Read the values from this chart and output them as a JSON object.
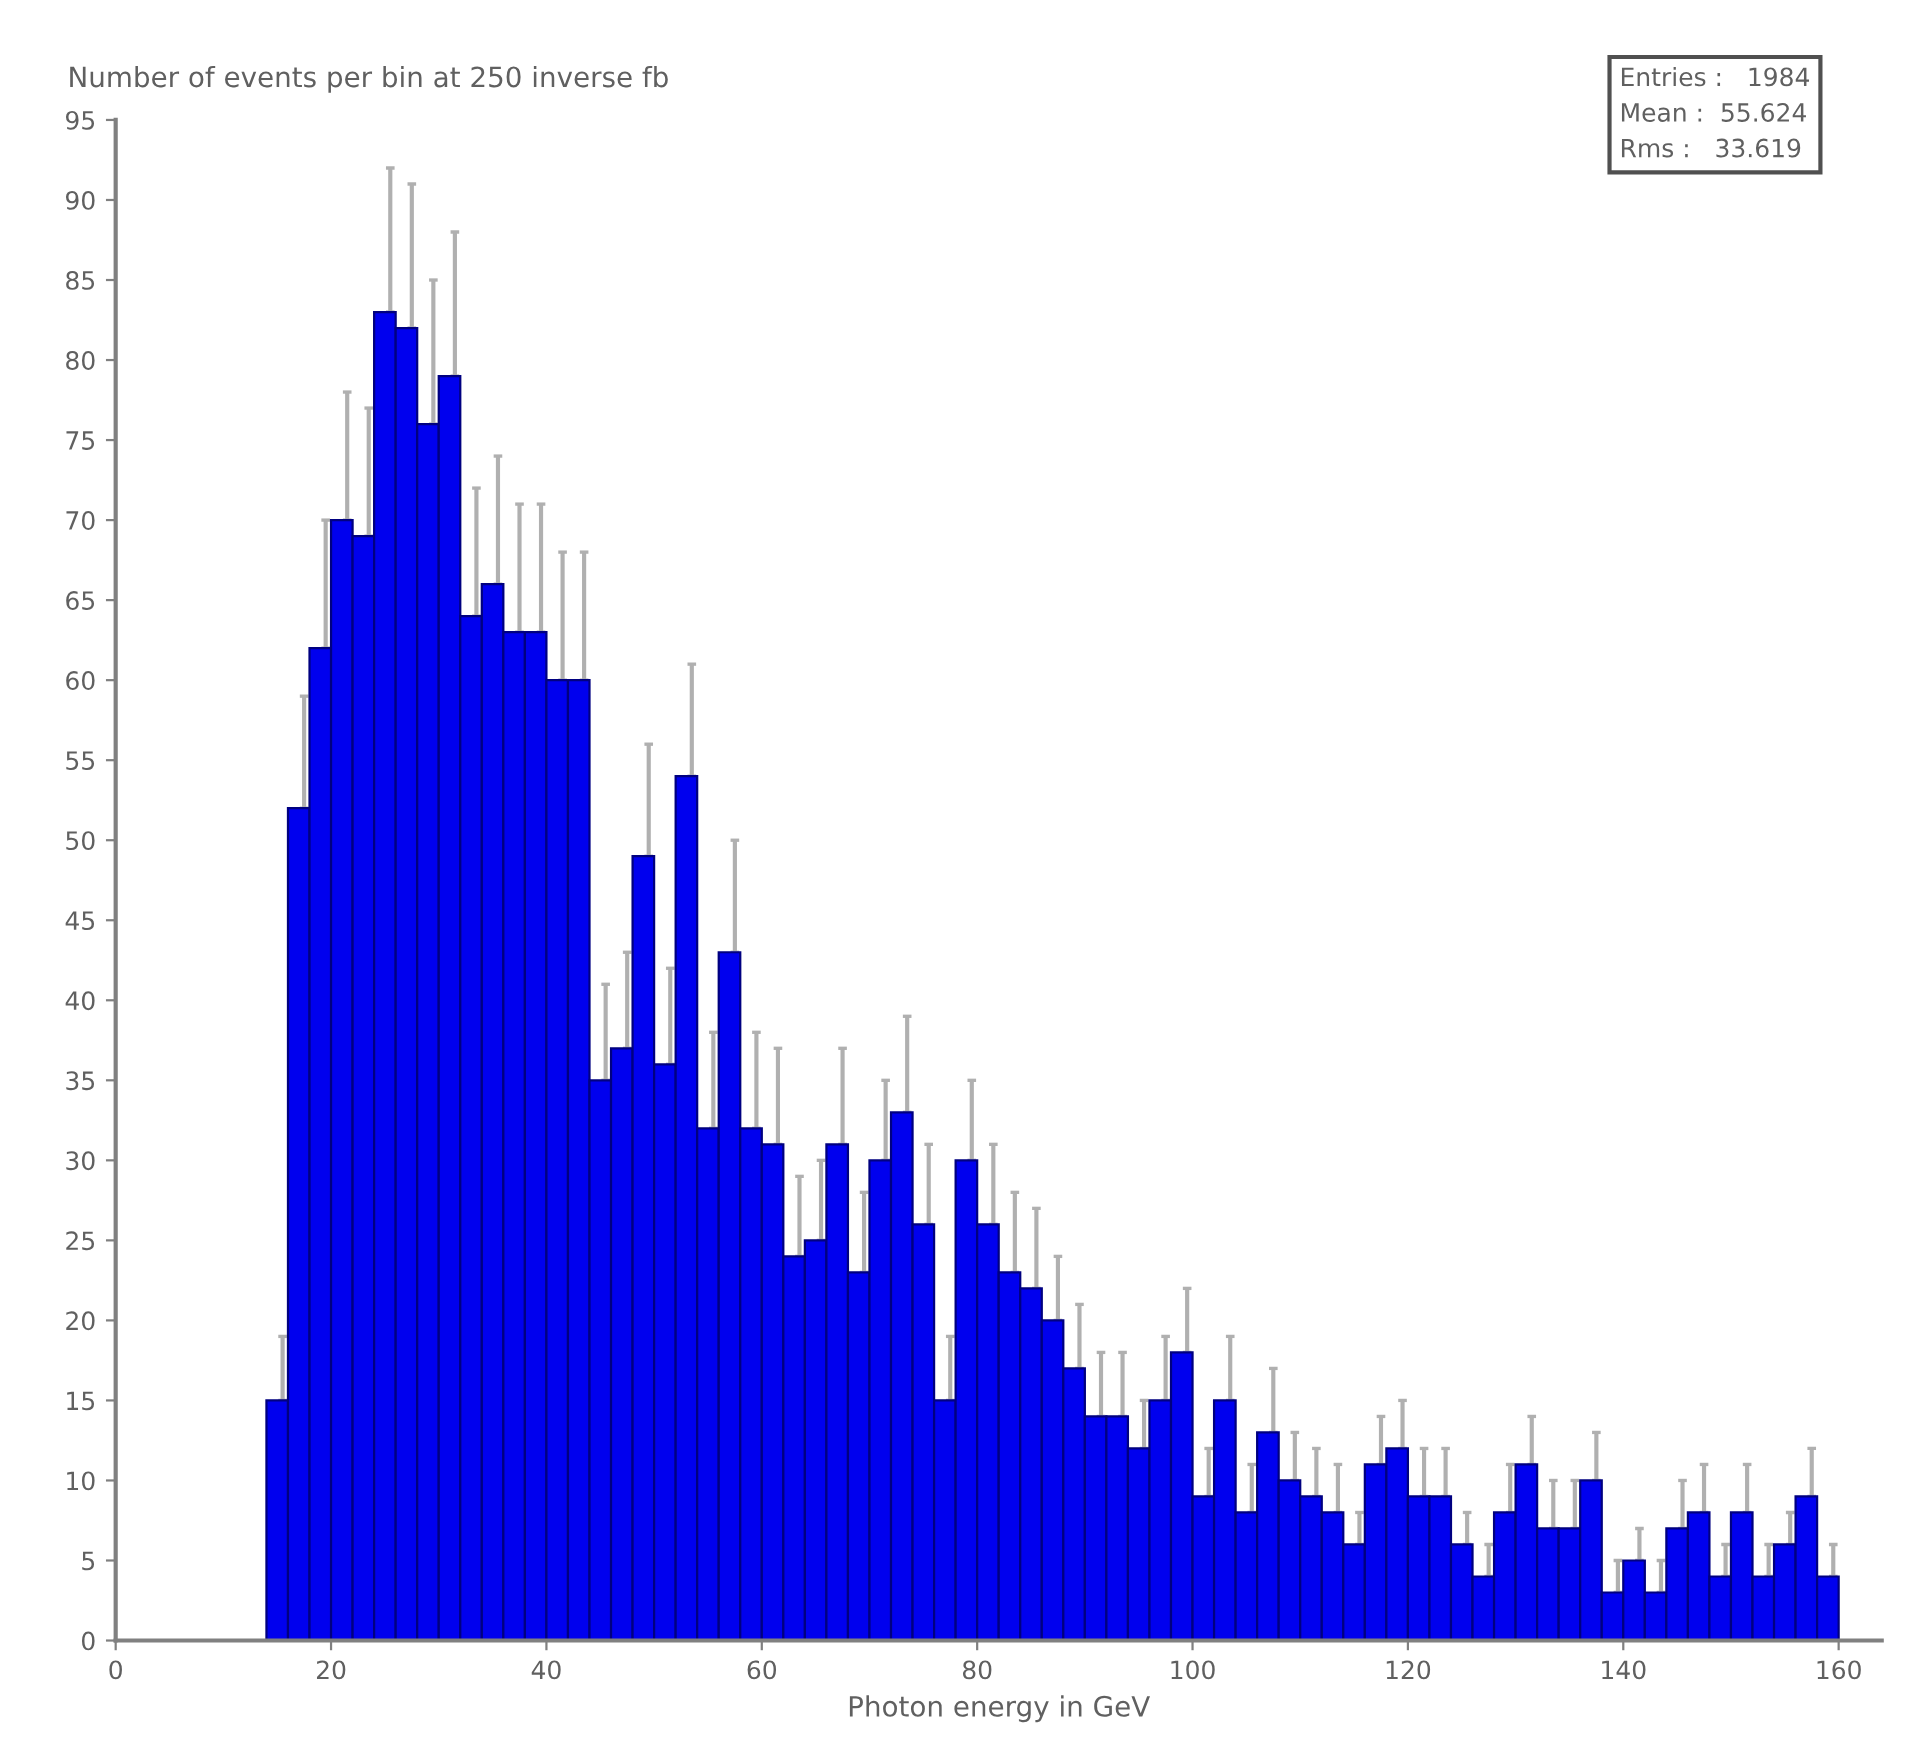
{
  "chart_data": {
    "type": "histogram",
    "ylabel": "Number of events per bin at 250 inverse fb",
    "xlabel": "Photon energy in GeV",
    "annotations": [
      "Entries :   1984",
      "Mean :  55.624",
      "Rms :   33.619"
    ],
    "bins": [
      14,
      16,
      18,
      20,
      22,
      24,
      26,
      28,
      30,
      32,
      34,
      36,
      38,
      40,
      42,
      44,
      46,
      48,
      50,
      52,
      54,
      56,
      58,
      60,
      62,
      64,
      66,
      68,
      70,
      72,
      74,
      76,
      78,
      80,
      82,
      84,
      86,
      88,
      90,
      92,
      94,
      96,
      98,
      100,
      102,
      104,
      106,
      108,
      110,
      112,
      114,
      116,
      118,
      120,
      122,
      124,
      126,
      128,
      130,
      132,
      134,
      136,
      138,
      140,
      142,
      144,
      146,
      148,
      150,
      152,
      154,
      156,
      158,
      160
    ],
    "values": [
      15,
      52,
      62,
      70,
      69,
      83,
      82,
      76,
      79,
      64,
      66,
      63,
      63,
      60,
      60,
      35,
      37,
      49,
      36,
      54,
      32,
      43,
      32,
      31,
      24,
      25,
      31,
      23,
      30,
      33,
      26,
      15,
      30,
      26,
      23,
      22,
      20,
      17,
      14,
      14,
      12,
      15,
      18,
      9,
      15,
      8,
      13,
      10,
      9,
      8,
      6,
      11,
      12,
      9,
      9,
      6,
      4,
      8,
      11,
      7,
      7,
      10,
      3,
      5,
      3,
      7,
      8,
      4,
      8,
      4,
      6,
      9,
      4
    ],
    "errors": [
      [
        15,
        19
      ],
      [
        52,
        59
      ],
      [
        62,
        70
      ],
      [
        70,
        78
      ],
      [
        69,
        77
      ],
      [
        83,
        92
      ],
      [
        82,
        91
      ],
      [
        76,
        85
      ],
      [
        79,
        88
      ],
      [
        64,
        72
      ],
      [
        66,
        74
      ],
      [
        63,
        71
      ],
      [
        63,
        71
      ],
      [
        60,
        68
      ],
      [
        60,
        68
      ],
      [
        35,
        41
      ],
      [
        37,
        43
      ],
      [
        49,
        56
      ],
      [
        36,
        42
      ],
      [
        54,
        61
      ],
      [
        32,
        38
      ],
      [
        43,
        50
      ],
      [
        32,
        38
      ],
      [
        31,
        37
      ],
      [
        24,
        29
      ],
      [
        25,
        30
      ],
      [
        31,
        37
      ],
      [
        23,
        28
      ],
      [
        30,
        35
      ],
      [
        33,
        39
      ],
      [
        26,
        31
      ],
      [
        15,
        19
      ],
      [
        30,
        35
      ],
      [
        26,
        31
      ],
      [
        23,
        28
      ],
      [
        22,
        27
      ],
      [
        20,
        24
      ],
      [
        17,
        21
      ],
      [
        14,
        18
      ],
      [
        14,
        18
      ],
      [
        12,
        15
      ],
      [
        15,
        19
      ],
      [
        18,
        22
      ],
      [
        9,
        12
      ],
      [
        15,
        19
      ],
      [
        8,
        11
      ],
      [
        13,
        17
      ],
      [
        10,
        13
      ],
      [
        9,
        12
      ],
      [
        8,
        11
      ],
      [
        6,
        8
      ],
      [
        11,
        14
      ],
      [
        12,
        15
      ],
      [
        9,
        12
      ],
      [
        9,
        12
      ],
      [
        6,
        8
      ],
      [
        4,
        6
      ],
      [
        8,
        11
      ],
      [
        11,
        14
      ],
      [
        7,
        10
      ],
      [
        7,
        10
      ],
      [
        10,
        13
      ],
      [
        3,
        5
      ],
      [
        5,
        7
      ],
      [
        3,
        5
      ],
      [
        7,
        10
      ],
      [
        8,
        11
      ],
      [
        4,
        6
      ],
      [
        8,
        11
      ],
      [
        4,
        6
      ],
      [
        6,
        8
      ],
      [
        9,
        12
      ],
      [
        4,
        6
      ]
    ],
    "color": "#0000ee",
    "xlim": [
      0,
      164
    ],
    "xticks": [
      0,
      20,
      40,
      60,
      80,
      100,
      120,
      140,
      160
    ],
    "ylim": [
      0,
      95
    ],
    "yticks": [
      0,
      5,
      10,
      15,
      20,
      25,
      30,
      35,
      40,
      45,
      50,
      55,
      60,
      65,
      70,
      75,
      80,
      85,
      90,
      95
    ],
    "grid": false,
    "legend": false
  }
}
